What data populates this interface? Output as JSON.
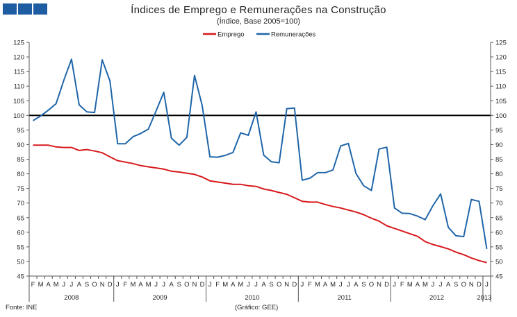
{
  "header": {
    "logo": "logo-squares"
  },
  "chart_data": {
    "type": "line",
    "title": "Índices de Emprego e Remunerações na Construção",
    "subtitle": "(Índice, Base 2005=100)",
    "ylim": [
      45,
      125
    ],
    "yticks": [
      "45",
      "50",
      "55",
      "60",
      "65",
      "70",
      "75",
      "80",
      "85",
      "90",
      "95",
      "100",
      "105",
      "110",
      "115",
      "120",
      "125"
    ],
    "reference_line": 100,
    "month_labels": [
      "F",
      "M",
      "A",
      "M",
      "J",
      "J",
      "A",
      "S",
      "O",
      "N",
      "D",
      "J",
      "F",
      "M",
      "A",
      "M",
      "J",
      "J",
      "A",
      "S",
      "O",
      "N",
      "D",
      "J",
      "F",
      "M",
      "A",
      "M",
      "J",
      "J",
      "A",
      "S",
      "O",
      "N",
      "D",
      "J",
      "F",
      "M",
      "A",
      "M",
      "J",
      "J",
      "A",
      "S",
      "O",
      "N",
      "D",
      "J",
      "F",
      "M",
      "A",
      "M",
      "J",
      "J",
      "A",
      "S",
      "O",
      "N",
      "D",
      "J"
    ],
    "year_labels": [
      "2008",
      "2009",
      "2010",
      "2011",
      "2012",
      "2013"
    ],
    "series": [
      {
        "name": "Emprego",
        "color": "#d7191c",
        "values": [
          89.8,
          89.8,
          89.8,
          89.2,
          89.0,
          89.0,
          88.0,
          88.3,
          87.8,
          87.2,
          85.8,
          84.5,
          84.0,
          83.5,
          82.8,
          82.4,
          82.0,
          81.6,
          80.9,
          80.6,
          80.2,
          79.8,
          78.9,
          77.6,
          77.2,
          76.8,
          76.4,
          76.4,
          75.9,
          75.7,
          74.8,
          74.3,
          73.6,
          73.0,
          71.8,
          70.6,
          70.3,
          70.3,
          69.5,
          68.8,
          68.3,
          67.6,
          66.9,
          66.0,
          64.8,
          63.8,
          62.2,
          61.3,
          60.4,
          59.5,
          58.6,
          56.8,
          55.8,
          55.1,
          54.3,
          53.2,
          52.3,
          51.2,
          50.3,
          49.6
        ]
      },
      {
        "name": "Remunerações",
        "color": "#1f65a8",
        "values": [
          98.2,
          99.8,
          101.8,
          104.0,
          112.0,
          119.2,
          103.6,
          101.2,
          101.0,
          119.0,
          111.8,
          90.3,
          90.3,
          92.7,
          93.8,
          95.3,
          101.5,
          107.9,
          92.2,
          89.8,
          92.5,
          113.7,
          103.3,
          85.8,
          85.7,
          86.3,
          87.3,
          94.0,
          93.2,
          101.2,
          86.4,
          84.1,
          83.8,
          102.3,
          102.5,
          77.8,
          78.5,
          80.4,
          80.4,
          81.3,
          89.5,
          90.4,
          80.1,
          75.9,
          74.3,
          88.5,
          89.1,
          68.3,
          66.5,
          66.4,
          65.5,
          64.3,
          69.1,
          73.1,
          61.7,
          58.8,
          58.5,
          71.2,
          70.6,
          54.3
        ]
      }
    ]
  },
  "footer": {
    "source": "Fonte: INE",
    "credit": "(Gráfico: GEE)"
  }
}
